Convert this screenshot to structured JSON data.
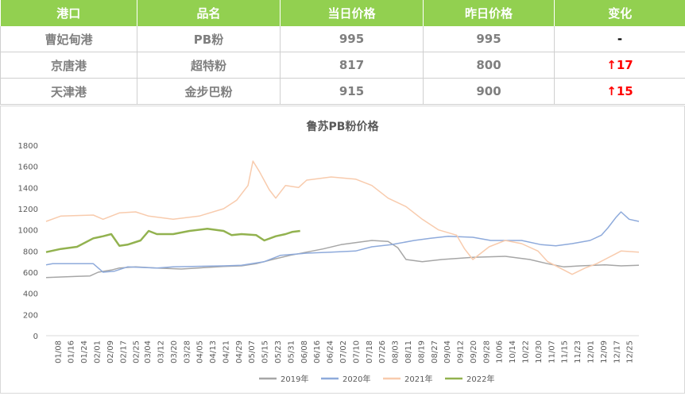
{
  "table": {
    "headers": [
      "港口",
      "品名",
      "当日价格",
      "昨日价格",
      "变化"
    ],
    "rows": [
      {
        "port": "曹妃甸港",
        "product": "PB粉",
        "today": "995",
        "yesterday": "995",
        "change": "-",
        "trend": "flat"
      },
      {
        "port": "京唐港",
        "product": "超特粉",
        "today": "817",
        "yesterday": "800",
        "change": "↑17",
        "trend": "up"
      },
      {
        "port": "天津港",
        "product": "金步巴粉",
        "today": "915",
        "yesterday": "900",
        "change": "↑15",
        "trend": "up"
      }
    ],
    "colors": {
      "header_bg": "#92d050",
      "header_text": "#ffffff",
      "cell_text": "#7f7f7f",
      "up": "#ff0000"
    }
  },
  "chart_data": {
    "type": "line",
    "title": "鲁苏PB粉价格",
    "xlabel": "",
    "ylabel": "",
    "ylim": [
      0,
      1800
    ],
    "yticks": [
      0,
      200,
      400,
      600,
      800,
      1000,
      1200,
      1400,
      1600,
      1800
    ],
    "xlim": [
      "01/01",
      "12/31"
    ],
    "x_tick_labels": [
      "01/08",
      "01/16",
      "01/24",
      "02/01",
      "02/09",
      "02/17",
      "02/25",
      "03/04",
      "03/12",
      "03/20",
      "03/28",
      "04/05",
      "04/13",
      "04/21",
      "04/29",
      "05/07",
      "05/15",
      "05/23",
      "05/31",
      "06/08",
      "06/16",
      "06/24",
      "07/02",
      "07/10",
      "07/18",
      "07/26",
      "08/03",
      "08/11",
      "08/19",
      "08/27",
      "09/04",
      "09/12",
      "09/20",
      "09/28",
      "10/06",
      "10/14",
      "10/22",
      "10/30",
      "11/07",
      "11/15",
      "11/23",
      "12/01",
      "12/09",
      "12/17",
      "12/25"
    ],
    "grid": false,
    "legend": "bottom",
    "series": [
      {
        "name": "2019年",
        "color": "#a6a6a6",
        "points": [
          [
            "01/01",
            550
          ],
          [
            "01/20",
            560
          ],
          [
            "01/28",
            565
          ],
          [
            "02/02",
            600
          ],
          [
            "02/10",
            620
          ],
          [
            "02/15",
            640
          ],
          [
            "02/25",
            650
          ],
          [
            "03/10",
            640
          ],
          [
            "03/25",
            630
          ],
          [
            "04/10",
            645
          ],
          [
            "04/20",
            655
          ],
          [
            "05/01",
            660
          ],
          [
            "05/10",
            680
          ],
          [
            "05/20",
            720
          ],
          [
            "05/31",
            760
          ],
          [
            "06/10",
            790
          ],
          [
            "06/20",
            820
          ],
          [
            "07/01",
            860
          ],
          [
            "07/10",
            880
          ],
          [
            "07/20",
            900
          ],
          [
            "07/30",
            890
          ],
          [
            "08/05",
            830
          ],
          [
            "08/10",
            720
          ],
          [
            "08/20",
            700
          ],
          [
            "09/01",
            720
          ],
          [
            "09/20",
            740
          ],
          [
            "10/10",
            750
          ],
          [
            "10/25",
            720
          ],
          [
            "11/05",
            680
          ],
          [
            "11/15",
            650
          ],
          [
            "11/25",
            660
          ],
          [
            "12/10",
            670
          ],
          [
            "12/20",
            660
          ],
          [
            "12/31",
            665
          ]
        ]
      },
      {
        "name": "2020年",
        "color": "#8eaadb",
        "points": [
          [
            "01/01",
            670
          ],
          [
            "01/05",
            680
          ],
          [
            "01/30",
            680
          ],
          [
            "02/05",
            600
          ],
          [
            "02/12",
            610
          ],
          [
            "02/20",
            650
          ],
          [
            "03/10",
            640
          ],
          [
            "03/20",
            650
          ],
          [
            "04/01",
            655
          ],
          [
            "04/20",
            660
          ],
          [
            "05/01",
            665
          ],
          [
            "05/15",
            700
          ],
          [
            "05/25",
            760
          ],
          [
            "06/10",
            780
          ],
          [
            "06/25",
            790
          ],
          [
            "07/10",
            800
          ],
          [
            "07/20",
            840
          ],
          [
            "08/01",
            860
          ],
          [
            "08/15",
            900
          ],
          [
            "08/25",
            920
          ],
          [
            "09/05",
            940
          ],
          [
            "09/20",
            930
          ],
          [
            "10/01",
            900
          ],
          [
            "10/20",
            900
          ],
          [
            "11/01",
            860
          ],
          [
            "11/10",
            850
          ],
          [
            "11/20",
            870
          ],
          [
            "12/01",
            900
          ],
          [
            "12/08",
            950
          ],
          [
            "12/12",
            1020
          ],
          [
            "12/17",
            1120
          ],
          [
            "12/20",
            1170
          ],
          [
            "12/25",
            1100
          ],
          [
            "12/31",
            1080
          ]
        ]
      },
      {
        "name": "2021年",
        "color": "#f8cbad",
        "points": [
          [
            "01/01",
            1080
          ],
          [
            "01/10",
            1130
          ],
          [
            "01/30",
            1140
          ],
          [
            "02/05",
            1100
          ],
          [
            "02/15",
            1160
          ],
          [
            "02/25",
            1170
          ],
          [
            "03/05",
            1130
          ],
          [
            "03/20",
            1100
          ],
          [
            "04/05",
            1130
          ],
          [
            "04/20",
            1200
          ],
          [
            "04/28",
            1280
          ],
          [
            "05/05",
            1420
          ],
          [
            "05/08",
            1650
          ],
          [
            "05/12",
            1550
          ],
          [
            "05/18",
            1380
          ],
          [
            "05/22",
            1300
          ],
          [
            "05/28",
            1420
          ],
          [
            "06/05",
            1400
          ],
          [
            "06/10",
            1470
          ],
          [
            "06/25",
            1500
          ],
          [
            "07/10",
            1480
          ],
          [
            "07/20",
            1420
          ],
          [
            "07/30",
            1300
          ],
          [
            "08/10",
            1220
          ],
          [
            "08/20",
            1100
          ],
          [
            "08/30",
            1000
          ],
          [
            "09/10",
            950
          ],
          [
            "09/15",
            820
          ],
          [
            "09/20",
            720
          ],
          [
            "09/30",
            840
          ],
          [
            "10/10",
            900
          ],
          [
            "10/20",
            870
          ],
          [
            "10/30",
            800
          ],
          [
            "11/05",
            700
          ],
          [
            "11/15",
            620
          ],
          [
            "11/20",
            580
          ],
          [
            "11/28",
            640
          ],
          [
            "12/05",
            680
          ],
          [
            "12/15",
            760
          ],
          [
            "12/20",
            800
          ],
          [
            "12/31",
            790
          ]
        ]
      },
      {
        "name": "2022年",
        "color": "#92b24f",
        "points": [
          [
            "01/01",
            790
          ],
          [
            "01/10",
            820
          ],
          [
            "01/20",
            840
          ],
          [
            "01/30",
            920
          ],
          [
            "02/05",
            940
          ],
          [
            "02/10",
            960
          ],
          [
            "02/15",
            850
          ],
          [
            "02/20",
            860
          ],
          [
            "02/28",
            900
          ],
          [
            "03/05",
            990
          ],
          [
            "03/10",
            960
          ],
          [
            "03/20",
            960
          ],
          [
            "03/30",
            990
          ],
          [
            "04/10",
            1010
          ],
          [
            "04/20",
            990
          ],
          [
            "04/25",
            950
          ],
          [
            "05/01",
            960
          ],
          [
            "05/10",
            950
          ],
          [
            "05/15",
            900
          ],
          [
            "05/22",
            940
          ],
          [
            "05/28",
            960
          ],
          [
            "06/01",
            980
          ],
          [
            "06/06",
            990
          ]
        ]
      }
    ]
  }
}
